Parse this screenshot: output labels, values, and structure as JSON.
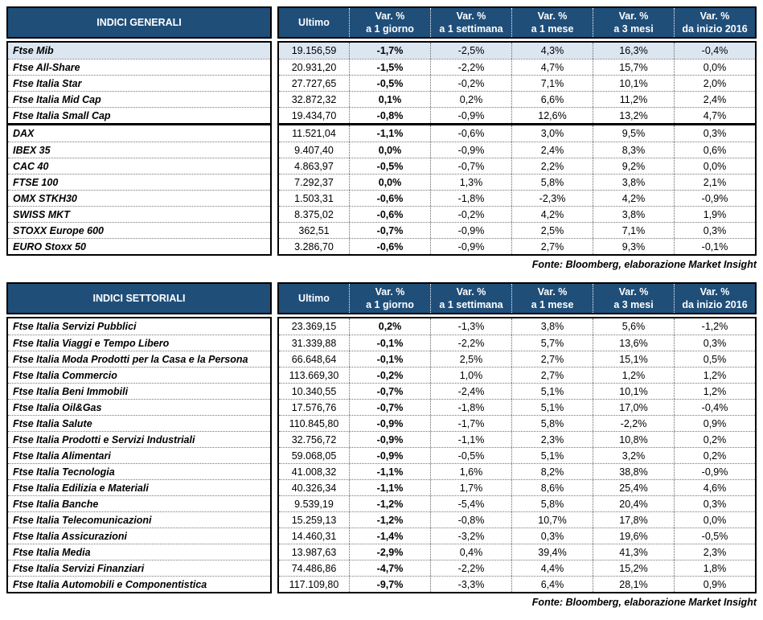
{
  "colors": {
    "header_bg": "#1F4E79",
    "header_text": "#FFFFFF",
    "highlight_row": "#DCE6F1",
    "border": "#000000"
  },
  "tables": [
    {
      "title": "INDICI GENERALI",
      "value_header": "Ultimo",
      "var_headers": [
        {
          "top": "Var. %",
          "bottom": "a 1 giorno"
        },
        {
          "top": "Var. %",
          "bottom": "a 1 settimana"
        },
        {
          "top": "Var. %",
          "bottom": "a 1 mese"
        },
        {
          "top": "Var. %",
          "bottom": "a 3 mesi"
        },
        {
          "top": "Var. %",
          "bottom": "da inizio 2016"
        }
      ],
      "source_note": "Fonte: Bloomberg, elaborazione Market Insight",
      "groups": [
        {
          "rows": [
            {
              "name": "Ftse Mib",
              "highlight": true,
              "ultimo": "19.156,59",
              "values": [
                "-1,7%",
                "-2,5%",
                "4,3%",
                "16,3%",
                "-0,4%"
              ]
            },
            {
              "name": "Ftse All-Share",
              "ultimo": "20.931,20",
              "values": [
                "-1,5%",
                "-2,2%",
                "4,7%",
                "15,7%",
                "0,0%"
              ]
            },
            {
              "name": "Ftse Italia Star",
              "ultimo": "27.727,65",
              "values": [
                "-0,5%",
                "-0,2%",
                "7,1%",
                "10,1%",
                "2,0%"
              ]
            },
            {
              "name": "Ftse Italia Mid Cap",
              "ultimo": "32.872,32",
              "values": [
                "0,1%",
                "0,2%",
                "6,6%",
                "11,2%",
                "2,4%"
              ]
            },
            {
              "name": "Ftse Italia Small Cap",
              "ultimo": "19.434,70",
              "values": [
                "-0,8%",
                "-0,9%",
                "12,6%",
                "13,2%",
                "4,7%"
              ]
            }
          ]
        },
        {
          "rows": [
            {
              "name": "DAX",
              "ultimo": "11.521,04",
              "values": [
                "-1,1%",
                "-0,6%",
                "3,0%",
                "9,5%",
                "0,3%"
              ]
            },
            {
              "name": "IBEX 35",
              "ultimo": "9.407,40",
              "values": [
                "0,0%",
                "-0,9%",
                "2,4%",
                "8,3%",
                "0,6%"
              ]
            },
            {
              "name": "CAC 40",
              "ultimo": "4.863,97",
              "values": [
                "-0,5%",
                "-0,7%",
                "2,2%",
                "9,2%",
                "0,0%"
              ]
            },
            {
              "name": "FTSE 100",
              "ultimo": "7.292,37",
              "values": [
                "0,0%",
                "1,3%",
                "5,8%",
                "3,8%",
                "2,1%"
              ]
            },
            {
              "name": "OMX STKH30",
              "ultimo": "1.503,31",
              "values": [
                "-0,6%",
                "-1,8%",
                "-2,3%",
                "4,2%",
                "-0,9%"
              ]
            },
            {
              "name": "SWISS MKT",
              "ultimo": "8.375,02",
              "values": [
                "-0,6%",
                "-0,2%",
                "4,2%",
                "3,8%",
                "1,9%"
              ]
            },
            {
              "name": "STOXX Europe 600",
              "ultimo": "362,51",
              "values": [
                "-0,7%",
                "-0,9%",
                "2,5%",
                "7,1%",
                "0,3%"
              ]
            },
            {
              "name": "EURO Stoxx 50",
              "ultimo": "3.286,70",
              "values": [
                "-0,6%",
                "-0,9%",
                "2,7%",
                "9,3%",
                "-0,1%"
              ]
            }
          ]
        }
      ]
    },
    {
      "title": "INDICI SETTORIALI",
      "value_header": "Ultimo",
      "var_headers": [
        {
          "top": "Var. %",
          "bottom": "a 1 giorno"
        },
        {
          "top": "Var. %",
          "bottom": "a 1 settimana"
        },
        {
          "top": "Var. %",
          "bottom": "a 1 mese"
        },
        {
          "top": "Var. %",
          "bottom": "a 3 mesi"
        },
        {
          "top": "Var. %",
          "bottom": "da inizio 2016"
        }
      ],
      "source_note": "Fonte: Bloomberg, elaborazione Market Insight",
      "groups": [
        {
          "rows": [
            {
              "name": "Ftse Italia Servizi Pubblici",
              "ultimo": "23.369,15",
              "values": [
                "0,2%",
                "-1,3%",
                "3,8%",
                "5,6%",
                "-1,2%"
              ]
            },
            {
              "name": "Ftse Italia Viaggi e Tempo Libero",
              "ultimo": "31.339,88",
              "values": [
                "-0,1%",
                "-2,2%",
                "5,7%",
                "13,6%",
                "0,3%"
              ]
            },
            {
              "name": "Ftse Italia Moda Prodotti per la Casa e la Persona",
              "ultimo": "66.648,64",
              "values": [
                "-0,1%",
                "2,5%",
                "2,7%",
                "15,1%",
                "0,5%"
              ]
            },
            {
              "name": "Ftse Italia Commercio",
              "ultimo": "113.669,30",
              "values": [
                "-0,2%",
                "1,0%",
                "2,7%",
                "1,2%",
                "1,2%"
              ]
            },
            {
              "name": "Ftse Italia Beni Immobili",
              "ultimo": "10.340,55",
              "values": [
                "-0,7%",
                "-2,4%",
                "5,1%",
                "10,1%",
                "1,2%"
              ]
            },
            {
              "name": "Ftse Italia Oil&Gas",
              "ultimo": "17.576,76",
              "values": [
                "-0,7%",
                "-1,8%",
                "5,1%",
                "17,0%",
                "-0,4%"
              ]
            },
            {
              "name": "Ftse Italia Salute",
              "ultimo": "110.845,80",
              "values": [
                "-0,9%",
                "-1,7%",
                "5,8%",
                "-2,2%",
                "0,9%"
              ]
            },
            {
              "name": "Ftse Italia Prodotti e Servizi Industriali",
              "ultimo": "32.756,72",
              "values": [
                "-0,9%",
                "-1,1%",
                "2,3%",
                "10,8%",
                "0,2%"
              ]
            },
            {
              "name": "Ftse Italia Alimentari",
              "ultimo": "59.068,05",
              "values": [
                "-0,9%",
                "-0,5%",
                "5,1%",
                "3,2%",
                "0,2%"
              ]
            },
            {
              "name": "Ftse Italia Tecnologia",
              "ultimo": "41.008,32",
              "values": [
                "-1,1%",
                "1,6%",
                "8,2%",
                "38,8%",
                "-0,9%"
              ]
            },
            {
              "name": "Ftse Italia Edilizia e Materiali",
              "ultimo": "40.326,34",
              "values": [
                "-1,1%",
                "1,7%",
                "8,6%",
                "25,4%",
                "4,6%"
              ]
            },
            {
              "name": "Ftse Italia Banche",
              "ultimo": "9.539,19",
              "values": [
                "-1,2%",
                "-5,4%",
                "5,8%",
                "20,4%",
                "0,3%"
              ]
            },
            {
              "name": "Ftse Italia Telecomunicazioni",
              "ultimo": "15.259,13",
              "values": [
                "-1,2%",
                "-0,8%",
                "10,7%",
                "17,8%",
                "0,0%"
              ]
            },
            {
              "name": "Ftse Italia Assicurazioni",
              "ultimo": "14.460,31",
              "values": [
                "-1,4%",
                "-3,2%",
                "0,3%",
                "19,6%",
                "-0,5%"
              ]
            },
            {
              "name": "Ftse Italia Media",
              "ultimo": "13.987,63",
              "values": [
                "-2,9%",
                "0,4%",
                "39,4%",
                "41,3%",
                "2,3%"
              ]
            },
            {
              "name": "Ftse Italia Servizi Finanziari",
              "ultimo": "74.486,86",
              "values": [
                "-4,7%",
                "-2,2%",
                "4,4%",
                "15,2%",
                "1,8%"
              ]
            },
            {
              "name": "Ftse Italia Automobili e Componentistica",
              "ultimo": "117.109,80",
              "values": [
                "-9,7%",
                "-3,3%",
                "6,4%",
                "28,1%",
                "0,9%"
              ]
            }
          ]
        }
      ]
    }
  ]
}
